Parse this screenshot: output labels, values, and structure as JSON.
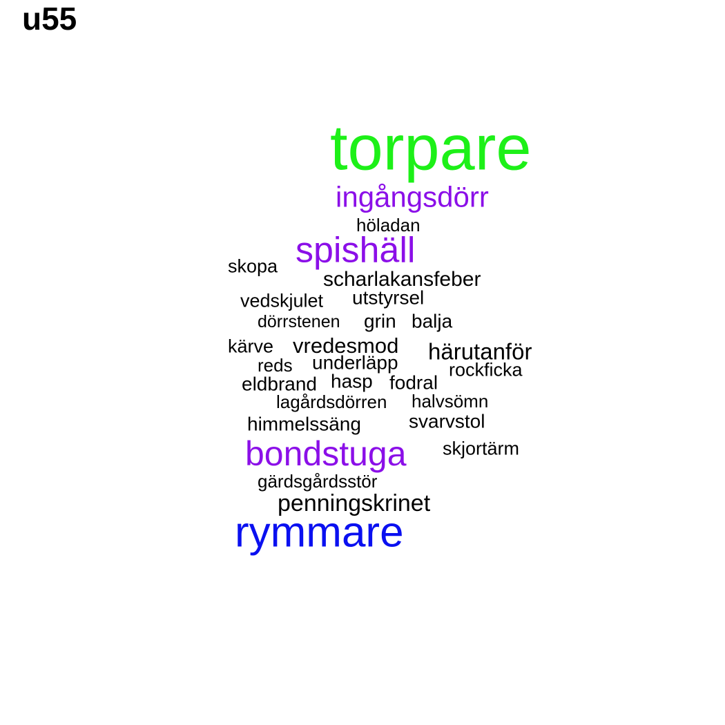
{
  "title": "u55",
  "colors": {
    "black": "#000000",
    "purple": "#8b0fe8",
    "green": "#1df018",
    "blue": "#0a10f0"
  },
  "words": [
    {
      "text": "torpare",
      "color": "green"
    },
    {
      "text": "ingångsdörr",
      "color": "purple"
    },
    {
      "text": "höladan",
      "color": "black"
    },
    {
      "text": "spishäll",
      "color": "purple"
    },
    {
      "text": "skopa",
      "color": "black"
    },
    {
      "text": "scharlakansfeber",
      "color": "black"
    },
    {
      "text": "vedskjulet",
      "color": "black"
    },
    {
      "text": "utstyrsel",
      "color": "black"
    },
    {
      "text": "dörrstenen",
      "color": "black"
    },
    {
      "text": "grin",
      "color": "black"
    },
    {
      "text": "balja",
      "color": "black"
    },
    {
      "text": "kärve",
      "color": "black"
    },
    {
      "text": "vredesmod",
      "color": "black"
    },
    {
      "text": "härutanför",
      "color": "black"
    },
    {
      "text": "reds",
      "color": "black"
    },
    {
      "text": "underläpp",
      "color": "black"
    },
    {
      "text": "rockficka",
      "color": "black"
    },
    {
      "text": "eldbrand",
      "color": "black"
    },
    {
      "text": "hasp",
      "color": "black"
    },
    {
      "text": "fodral",
      "color": "black"
    },
    {
      "text": "lagårdsdörren",
      "color": "black"
    },
    {
      "text": "halvsömn",
      "color": "black"
    },
    {
      "text": "himmelssäng",
      "color": "black"
    },
    {
      "text": "svarvstol",
      "color": "black"
    },
    {
      "text": "bondstuga",
      "color": "purple"
    },
    {
      "text": "skjortärm",
      "color": "black"
    },
    {
      "text": "gärdsgårdsstör",
      "color": "black"
    },
    {
      "text": "penningskrinet",
      "color": "black"
    },
    {
      "text": "rymmare",
      "color": "blue"
    }
  ]
}
